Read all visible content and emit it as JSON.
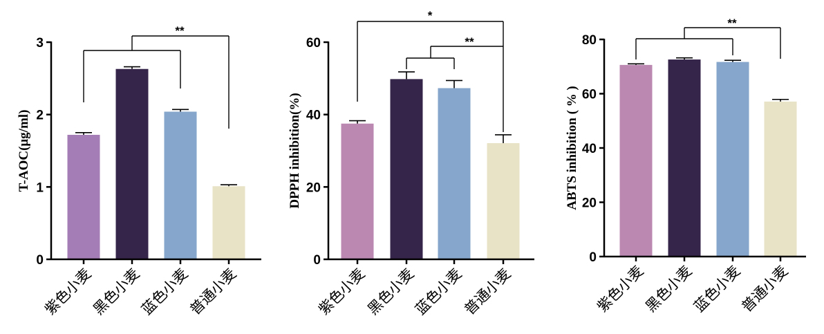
{
  "chart_data": [
    {
      "type": "bar",
      "ylabel": "T-AOC(μg/ml)",
      "ylim": [
        0,
        3
      ],
      "yticks": [
        0,
        1,
        2,
        3
      ],
      "categories": [
        "紫色小麦",
        "黑色小麦",
        "蓝色小麦",
        "普通小麦"
      ],
      "values": [
        1.72,
        2.63,
        2.04,
        1.01
      ],
      "errors": [
        0.03,
        0.03,
        0.03,
        0.02
      ],
      "colors": [
        "#a57db6",
        "#36254a",
        "#86a6cb",
        "#e8e2c6"
      ],
      "significance": [
        {
          "label": "**",
          "groups": [
            [
              0
            ],
            [
              1
            ],
            [
              2
            ],
            [
              3
            ]
          ],
          "note": "bracket from 紫色小麦–蓝色小麦 group to 普通小麦"
        }
      ]
    },
    {
      "type": "bar",
      "ylabel": "DPPH inhibition(%)",
      "ylim": [
        0,
        60
      ],
      "yticks": [
        0,
        20,
        40,
        60
      ],
      "categories": [
        "紫色小麦",
        "黑色小麦",
        "蓝色小麦",
        "普通小麦"
      ],
      "values": [
        37.5,
        49.8,
        47.3,
        32.1
      ],
      "errors": [
        0.8,
        2.0,
        2.1,
        2.3
      ],
      "colors": [
        "#bb88b2",
        "#36254a",
        "#86a6cb",
        "#e8e2c6"
      ],
      "significance": [
        {
          "label": "*",
          "note": "紫色小麦 vs 普通小麦"
        },
        {
          "label": "**",
          "note": "黑色小麦–蓝色小麦 group vs 普通小麦"
        }
      ]
    },
    {
      "type": "bar",
      "ylabel": "ABTS inhibition ( % )",
      "ylim": [
        0,
        80
      ],
      "yticks": [
        0,
        20,
        40,
        60,
        80
      ],
      "categories": [
        "紫色小麦",
        "黑色小麦",
        "蓝色小麦",
        "普通小麦"
      ],
      "values": [
        70.6,
        72.6,
        71.7,
        57.1
      ],
      "errors": [
        0.4,
        0.6,
        0.6,
        0.8
      ],
      "colors": [
        "#bb88b2",
        "#36254a",
        "#86a6cb",
        "#e8e2c6"
      ],
      "significance": [
        {
          "label": "**",
          "note": "紫色小麦–蓝色小麦 group vs 普通小麦"
        }
      ]
    }
  ]
}
